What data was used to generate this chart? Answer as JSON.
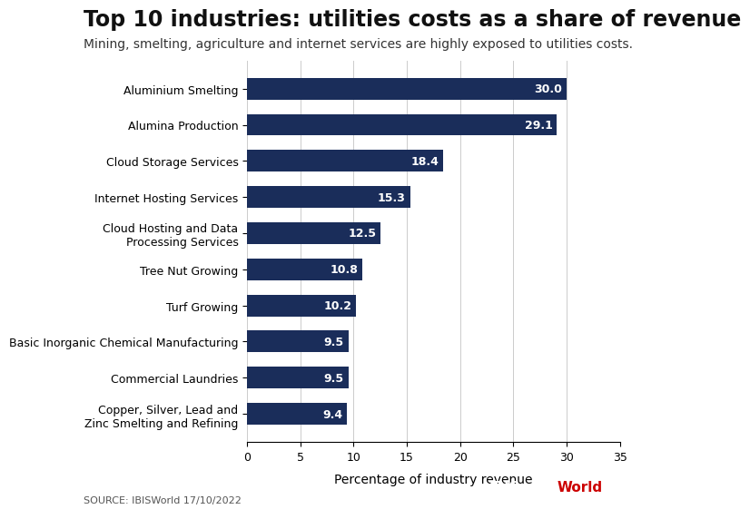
{
  "title": "Top 10 industries: utilities costs as a share of revenue",
  "subtitle": "Mining, smelting, agriculture and internet services are highly exposed to utilities costs.",
  "categories": [
    "Copper, Silver, Lead and\nZinc Smelting and Refining",
    "Commercial Laundries",
    "Basic Inorganic Chemical Manufacturing",
    "Turf Growing",
    "Tree Nut Growing",
    "Cloud Hosting and Data\nProcessing Services",
    "Internet Hosting Services",
    "Cloud Storage Services",
    "Alumina Production",
    "Aluminium Smelting"
  ],
  "values": [
    9.4,
    9.5,
    9.5,
    10.2,
    10.8,
    12.5,
    15.3,
    18.4,
    29.1,
    30.0
  ],
  "bar_color": "#1a2d5a",
  "bar_label_color": "#ffffff",
  "xlabel": "Percentage of industry revenue",
  "xlim": [
    0,
    35
  ],
  "xticks": [
    0,
    5,
    10,
    15,
    20,
    25,
    30,
    35
  ],
  "source_text": "SOURCE: IBISWorld 17/10/2022",
  "background_color": "#ffffff",
  "title_fontsize": 17,
  "subtitle_fontsize": 10,
  "label_fontsize": 9,
  "value_fontsize": 9,
  "xlabel_fontsize": 10,
  "source_fontsize": 8,
  "grid_color": "#cccccc"
}
